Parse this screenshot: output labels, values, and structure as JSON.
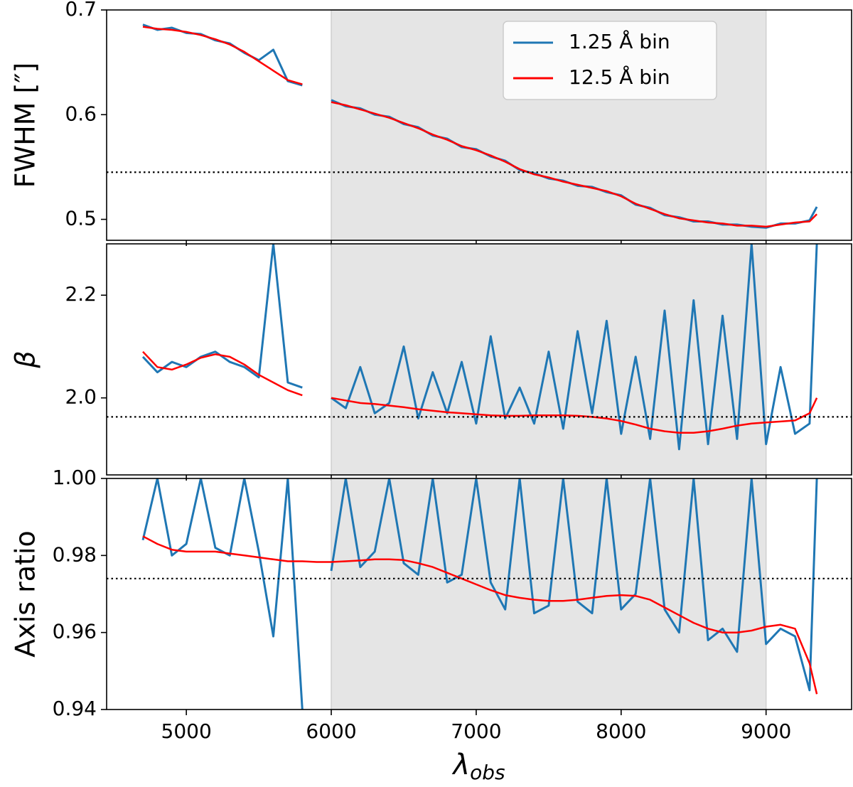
{
  "chart_data": [
    {
      "type": "line",
      "ylabel": "FWHM [″]",
      "x": [
        4700,
        4800,
        4900,
        5000,
        5100,
        5200,
        5300,
        5400,
        5500,
        5600,
        5700,
        5800,
        5900,
        6000,
        6100,
        6200,
        6300,
        6400,
        6500,
        6600,
        6700,
        6800,
        6900,
        7000,
        7100,
        7200,
        7300,
        7400,
        7500,
        7600,
        7700,
        7800,
        7900,
        8000,
        8100,
        8200,
        8300,
        8400,
        8500,
        8600,
        8700,
        8800,
        8900,
        9000,
        9100,
        9200,
        9300,
        9350
      ],
      "series": [
        {
          "name": "1.25 Å bin",
          "color": "#1f77b4",
          "values": [
            0.686,
            0.681,
            0.683,
            0.678,
            0.677,
            0.671,
            0.668,
            0.659,
            0.652,
            0.662,
            0.632,
            0.628,
            null,
            0.614,
            0.608,
            0.606,
            0.6,
            0.598,
            0.591,
            0.588,
            0.58,
            0.577,
            0.569,
            0.567,
            0.56,
            0.556,
            0.547,
            0.544,
            0.539,
            0.537,
            0.532,
            0.531,
            0.526,
            0.523,
            0.514,
            0.511,
            0.504,
            0.502,
            0.498,
            0.498,
            0.495,
            0.495,
            0.493,
            0.492,
            0.496,
            0.496,
            0.499,
            0.512
          ]
        },
        {
          "name": "12.5 Å bin",
          "color": "#ff0000",
          "values": [
            0.684,
            0.682,
            0.681,
            0.679,
            0.676,
            0.672,
            0.667,
            0.66,
            0.651,
            0.642,
            0.633,
            0.629,
            null,
            0.612,
            0.609,
            0.605,
            0.601,
            0.597,
            0.592,
            0.587,
            0.581,
            0.576,
            0.57,
            0.566,
            0.561,
            0.555,
            0.548,
            0.543,
            0.54,
            0.536,
            0.533,
            0.53,
            0.527,
            0.522,
            0.515,
            0.51,
            0.505,
            0.501,
            0.499,
            0.497,
            0.496,
            0.494,
            0.494,
            0.493,
            0.495,
            0.497,
            0.498,
            0.505
          ]
        }
      ],
      "xlim": [
        4450,
        9590
      ],
      "ylim": [
        0.48,
        0.7
      ],
      "yticks": [
        0.5,
        0.6,
        0.7
      ],
      "shaded_span": [
        6000,
        9000
      ],
      "hline": 0.545,
      "legend": "upper right"
    },
    {
      "type": "line",
      "ylabel": "β",
      "x": [
        4700,
        4800,
        4900,
        5000,
        5100,
        5200,
        5300,
        5400,
        5500,
        5600,
        5700,
        5800,
        5900,
        6000,
        6100,
        6200,
        6300,
        6400,
        6500,
        6600,
        6700,
        6800,
        6900,
        7000,
        7100,
        7200,
        7300,
        7400,
        7500,
        7600,
        7700,
        7800,
        7900,
        8000,
        8100,
        8200,
        8300,
        8400,
        8500,
        8600,
        8700,
        8800,
        8900,
        9000,
        9100,
        9200,
        9300,
        9350
      ],
      "series": [
        {
          "color": "#1f77b4",
          "values": [
            2.08,
            2.05,
            2.07,
            2.06,
            2.08,
            2.09,
            2.07,
            2.06,
            2.04,
            2.3,
            2.03,
            2.02,
            null,
            2.0,
            1.98,
            2.06,
            1.97,
            1.99,
            2.1,
            1.96,
            2.05,
            1.97,
            2.07,
            1.95,
            2.12,
            1.96,
            2.02,
            1.95,
            2.09,
            1.94,
            2.13,
            1.97,
            2.15,
            1.93,
            2.08,
            1.92,
            2.17,
            1.9,
            2.19,
            1.91,
            2.16,
            1.92,
            2.3,
            1.91,
            2.06,
            1.93,
            1.95,
            2.3
          ]
        },
        {
          "color": "#ff0000",
          "values": [
            2.09,
            2.06,
            2.055,
            2.065,
            2.078,
            2.085,
            2.08,
            2.065,
            2.045,
            2.03,
            2.015,
            2.005,
            null,
            2.0,
            1.995,
            1.99,
            1.988,
            1.985,
            1.982,
            1.978,
            1.975,
            1.972,
            1.97,
            1.968,
            1.966,
            1.965,
            1.965,
            1.966,
            1.966,
            1.966,
            1.965,
            1.963,
            1.96,
            1.955,
            1.948,
            1.94,
            1.935,
            1.932,
            1.932,
            1.935,
            1.94,
            1.946,
            1.95,
            1.952,
            1.954,
            1.956,
            1.97,
            2.0
          ]
        }
      ],
      "xlim": [
        4450,
        9590
      ],
      "ylim": [
        1.85,
        2.3
      ],
      "yticks": [
        {
          "value": 2,
          "label": "2.0"
        },
        2.2
      ],
      "shaded_span": [
        6000,
        9000
      ],
      "hline": 1.963
    },
    {
      "type": "line",
      "ylabel": "Axis ratio",
      "xlabel": {
        "symbol": "λ",
        "subscript": "obs"
      },
      "x": [
        4700,
        4800,
        4900,
        5000,
        5100,
        5200,
        5300,
        5400,
        5500,
        5600,
        5700,
        5800,
        5900,
        6000,
        6100,
        6200,
        6300,
        6400,
        6500,
        6600,
        6700,
        6800,
        6900,
        7000,
        7100,
        7200,
        7300,
        7400,
        7500,
        7600,
        7700,
        7800,
        7900,
        8000,
        8100,
        8200,
        8300,
        8400,
        8500,
        8600,
        8700,
        8800,
        8900,
        9000,
        9100,
        9200,
        9300,
        9350
      ],
      "series": [
        {
          "color": "#1f77b4",
          "values": [
            0.984,
            1.0,
            0.98,
            0.983,
            1.0,
            0.982,
            0.98,
            1.0,
            0.981,
            0.959,
            1.0,
            0.94,
            null,
            0.976,
            1.0,
            0.977,
            0.981,
            1.0,
            0.978,
            0.975,
            1.0,
            0.973,
            0.975,
            1.0,
            0.973,
            0.966,
            1.0,
            0.965,
            0.967,
            1.0,
            0.968,
            0.965,
            1.0,
            0.966,
            0.97,
            1.0,
            0.966,
            0.96,
            1.0,
            0.958,
            0.961,
            0.955,
            1.0,
            0.957,
            0.961,
            0.959,
            0.945,
            1.0
          ]
        },
        {
          "color": "#ff0000",
          "values": [
            0.985,
            0.983,
            0.9815,
            0.981,
            0.981,
            0.981,
            0.9805,
            0.98,
            0.9795,
            0.979,
            0.9785,
            0.9785,
            0.9783,
            0.9783,
            0.9785,
            0.9787,
            0.979,
            0.979,
            0.9788,
            0.978,
            0.977,
            0.9755,
            0.974,
            0.9725,
            0.971,
            0.9697,
            0.969,
            0.9685,
            0.9682,
            0.9682,
            0.9685,
            0.969,
            0.9695,
            0.9697,
            0.9695,
            0.9685,
            0.9665,
            0.9645,
            0.9625,
            0.961,
            0.96,
            0.96,
            0.9605,
            0.9615,
            0.962,
            0.961,
            0.952,
            0.944
          ]
        }
      ],
      "xlim": [
        4450,
        9590
      ],
      "ylim": [
        0.94,
        1.0
      ],
      "yticks": [
        0.94,
        0.96,
        0.98,
        {
          "value": 1,
          "label": "1.00"
        }
      ],
      "xticks": [
        5000,
        6000,
        7000,
        8000,
        9000
      ],
      "shaded_span": [
        6000,
        9000
      ],
      "hline": 0.974
    }
  ]
}
